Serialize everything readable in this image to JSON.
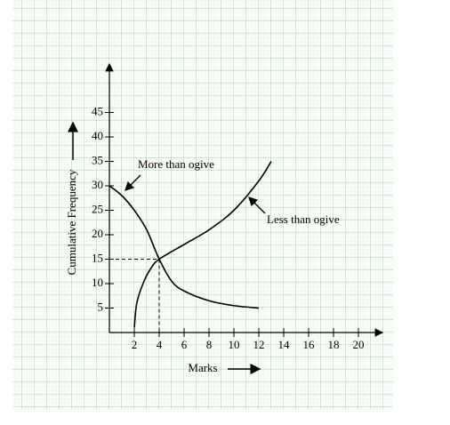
{
  "chart_data": {
    "type": "line",
    "xlabel": "Marks",
    "ylabel": "Cumulative Frequency",
    "xlim": [
      0,
      22
    ],
    "ylim": [
      0,
      55
    ],
    "xticks": [
      2,
      4,
      6,
      8,
      10,
      12,
      14,
      16,
      18,
      20
    ],
    "yticks": [
      5,
      10,
      15,
      20,
      25,
      30,
      35,
      40,
      45
    ],
    "series": [
      {
        "name": "More than ogive",
        "color": "#000000",
        "x": [
          0,
          1,
          2,
          3,
          4,
          5,
          6,
          8,
          10,
          12
        ],
        "values": [
          30,
          28,
          25,
          21,
          15,
          10.5,
          8.5,
          6.5,
          5.5,
          5
        ]
      },
      {
        "name": "Less than ogive",
        "color": "#000000",
        "x": [
          2,
          2.2,
          2.7,
          3.3,
          4,
          6,
          8,
          10,
          12,
          13
        ],
        "values": [
          1,
          6,
          10,
          13,
          15,
          18,
          21,
          25,
          31,
          35
        ]
      }
    ],
    "guide": {
      "x": 4,
      "y": 15
    }
  }
}
